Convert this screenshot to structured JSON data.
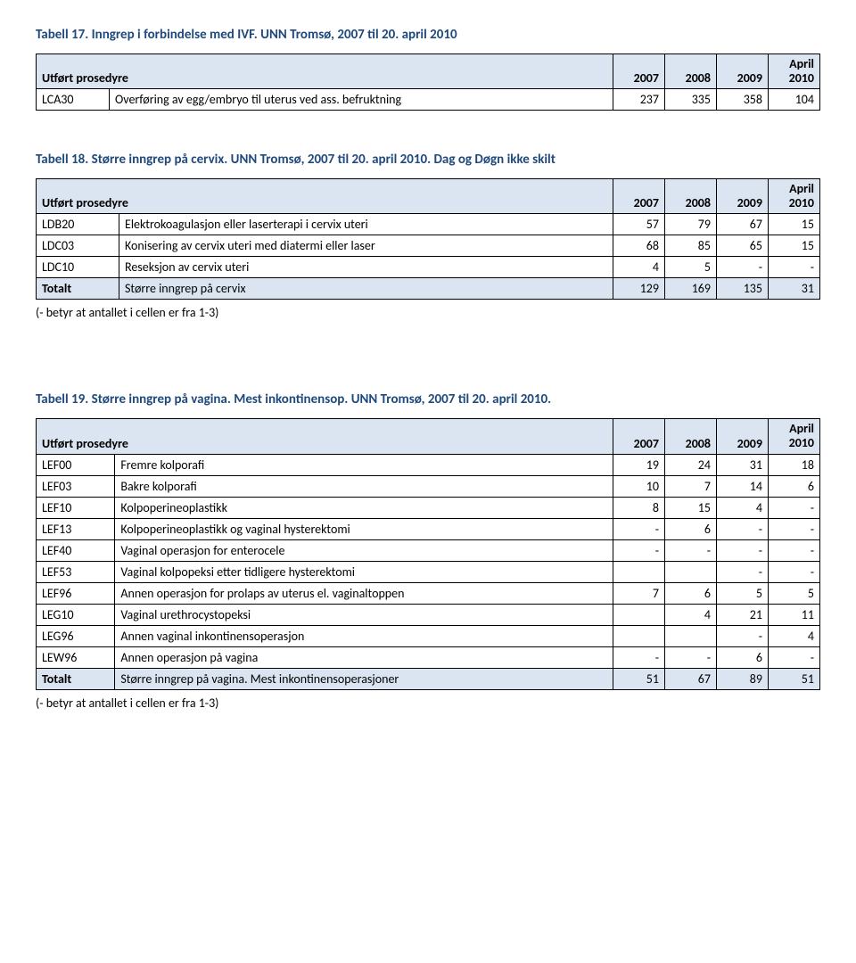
{
  "colors": {
    "heading": "#1f497d",
    "header_bg": "#dbe5f1",
    "border": "#000000",
    "text": "#000000",
    "background": "#ffffff"
  },
  "typography": {
    "body_font": "Calibri, Arial, sans-serif",
    "body_size_pt": 11,
    "heading_size_pt": 11,
    "heading_weight": "bold"
  },
  "table17": {
    "title": "Tabell 17. Inngrep i forbindelse med IVF. UNN Tromsø, 2007 til 20. april 2010",
    "header": {
      "proc": "Utført prosedyre",
      "y2007": "2007",
      "y2008": "2008",
      "y2009": "2009",
      "april_top": "April",
      "april_bot": "2010"
    },
    "rows": [
      {
        "code": "LCA30",
        "desc": "Overføring av egg/embryo til uterus ved ass. befruktning",
        "y2007": "237",
        "y2008": "335",
        "y2009": "358",
        "y2010": "104"
      }
    ]
  },
  "table18": {
    "title": "Tabell 18. Større inngrep på cervix. UNN Tromsø, 2007 til 20. april 2010. Dag og Døgn ikke skilt",
    "header": {
      "proc": "Utført prosedyre",
      "y2007": "2007",
      "y2008": "2008",
      "y2009": "2009",
      "april_top": "April",
      "april_bot": "2010"
    },
    "rows": [
      {
        "code": "LDB20",
        "desc": "Elektrokoagulasjon eller laserterapi i cervix uteri",
        "y2007": "57",
        "y2008": "79",
        "y2009": "67",
        "y2010": "15"
      },
      {
        "code": "LDC03",
        "desc": "Konisering av cervix uteri med diatermi eller laser",
        "y2007": "68",
        "y2008": "85",
        "y2009": "65",
        "y2010": "15"
      },
      {
        "code": "LDC10",
        "desc": "Reseksjon av cervix uteri",
        "y2007": "4",
        "y2008": "5",
        "y2009": "-",
        "y2010": "-"
      }
    ],
    "total": {
      "code": "Totalt",
      "desc": "Større inngrep på cervix",
      "y2007": "129",
      "y2008": "169",
      "y2009": "135",
      "y2010": "31"
    },
    "footnote": "(- betyr at antallet i cellen er fra 1-3)"
  },
  "table19": {
    "title": "Tabell 19. Større inngrep på vagina. Mest inkontinensop. UNN Tromsø, 2007 til 20. april 2010.",
    "header": {
      "proc": "Utført prosedyre",
      "y2007": "2007",
      "y2008": "2008",
      "y2009": "2009",
      "april_top": "April",
      "april_bot": "2010"
    },
    "rows": [
      {
        "code": "LEF00",
        "desc": "Fremre kolporafi",
        "y2007": "19",
        "y2008": "24",
        "y2009": "31",
        "y2010": "18"
      },
      {
        "code": "LEF03",
        "desc": "Bakre kolporafi",
        "y2007": "10",
        "y2008": "7",
        "y2009": "14",
        "y2010": "6"
      },
      {
        "code": "LEF10",
        "desc": "Kolpoperineoplastikk",
        "y2007": "8",
        "y2008": "15",
        "y2009": "4",
        "y2010": "-"
      },
      {
        "code": "LEF13",
        "desc": "Kolpoperineoplastikk og vaginal hysterektomi",
        "y2007": "-",
        "y2008": "6",
        "y2009": "-",
        "y2010": "-"
      },
      {
        "code": "LEF40",
        "desc": "Vaginal operasjon for enterocele",
        "y2007": "-",
        "y2008": "-",
        "y2009": "-",
        "y2010": "-"
      },
      {
        "code": "LEF53",
        "desc": "Vaginal kolpopeksi etter tidligere hysterektomi",
        "y2007": "",
        "y2008": "",
        "y2009": "-",
        "y2010": "-"
      },
      {
        "code": "LEF96",
        "desc": "Annen operasjon for prolaps av uterus el. vaginaltoppen",
        "y2007": "7",
        "y2008": "6",
        "y2009": "5",
        "y2010": "5"
      },
      {
        "code": "LEG10",
        "desc": "Vaginal urethrocystopeksi",
        "y2007": "",
        "y2008": "4",
        "y2009": "21",
        "y2010": "11"
      },
      {
        "code": "LEG96",
        "desc": "Annen vaginal inkontinensoperasjon",
        "y2007": "",
        "y2008": "",
        "y2009": "-",
        "y2010": "4"
      },
      {
        "code": "LEW96",
        "desc": "Annen operasjon på vagina",
        "y2007": "-",
        "y2008": "-",
        "y2009": "6",
        "y2010": "-"
      }
    ],
    "total": {
      "code": "Totalt",
      "desc": "Større inngrep på vagina. Mest inkontinensoperasjoner",
      "y2007": "51",
      "y2008": "67",
      "y2009": "89",
      "y2010": "51"
    },
    "footnote": "(- betyr at antallet i cellen er fra 1-3)"
  }
}
